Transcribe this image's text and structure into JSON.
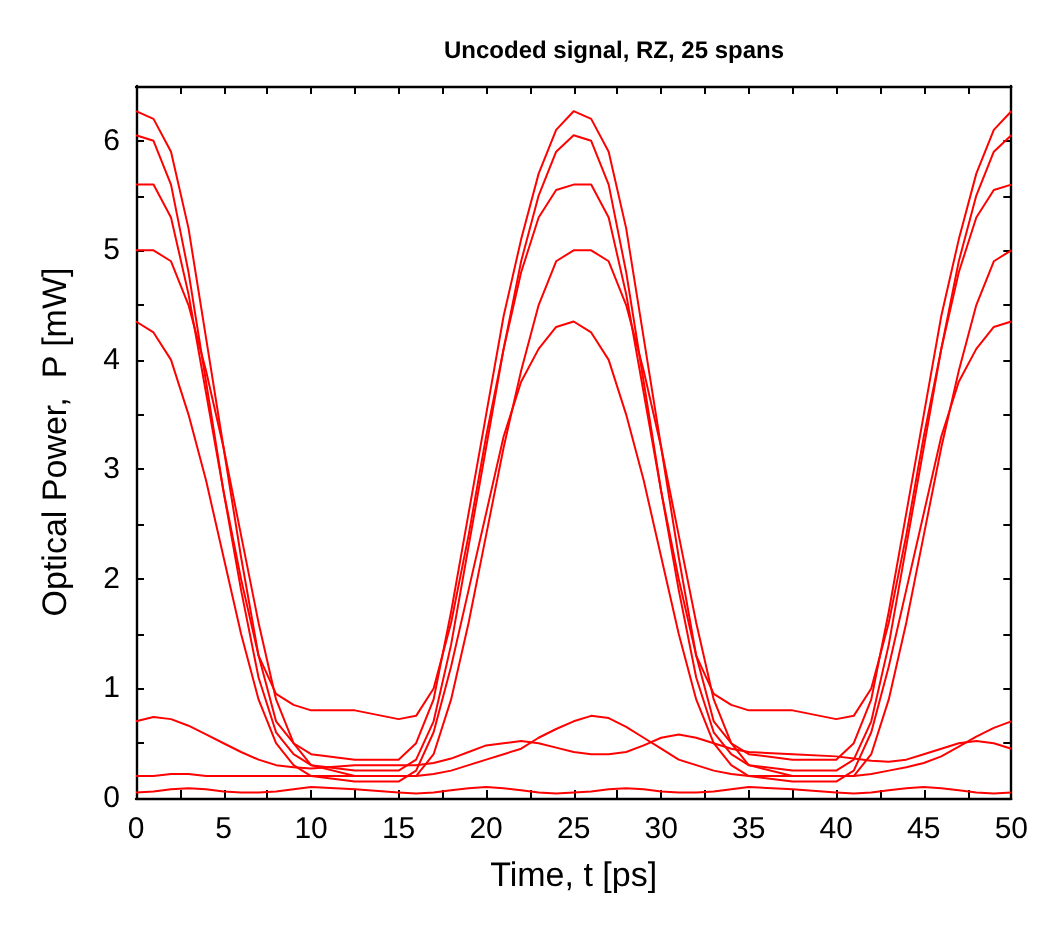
{
  "chart_data": {
    "type": "line",
    "title": "Uncoded signal, RZ, 25 spans",
    "xlabel": "Time, t [ps]",
    "ylabel": "Optical Power,  P [mW]",
    "marker": "none",
    "line_style": "solid",
    "xlim": [
      0,
      50
    ],
    "ylim": [
      0,
      6.5
    ],
    "xticks": [
      0,
      {
        "value": 2.5,
        "label": null
      },
      5,
      {
        "value": 7.5,
        "label": null
      },
      10,
      {
        "value": 12.5,
        "label": null
      },
      15,
      {
        "value": 17.5,
        "label": null
      },
      20,
      {
        "value": 22.5,
        "label": null
      },
      25,
      {
        "value": 27.5,
        "label": null
      },
      30,
      {
        "value": 32.5,
        "label": null
      },
      35,
      {
        "value": 37.5,
        "label": null
      },
      40,
      {
        "value": 42.5,
        "label": null
      },
      45,
      {
        "value": 47.5,
        "label": null
      },
      50
    ],
    "yticks": [
      0,
      {
        "value": 0.5,
        "label": null
      },
      1,
      {
        "value": 1.5,
        "label": null
      },
      2,
      {
        "value": 2.5,
        "label": null
      },
      3,
      {
        "value": 3.5,
        "label": null
      },
      4,
      {
        "value": 4.5,
        "label": null
      },
      5,
      {
        "value": 5.5,
        "label": null
      },
      6
    ],
    "x": [
      0,
      1,
      2,
      3,
      4,
      5,
      6,
      7,
      8,
      9,
      10,
      12.5,
      15,
      16,
      17,
      18,
      19,
      20,
      21,
      22,
      23,
      24,
      25,
      26,
      27,
      28,
      29,
      30,
      31,
      32,
      33,
      34,
      35,
      37.5,
      40,
      41,
      42,
      43,
      44,
      45,
      46,
      47,
      48,
      49,
      50
    ],
    "series": [
      {
        "color": "#ff0000",
        "values": [
          6.27,
          6.2,
          5.9,
          5.2,
          4.2,
          3.2,
          2.2,
          1.3,
          0.7,
          0.5,
          0.4,
          0.35,
          0.35,
          0.5,
          0.9,
          1.7,
          2.6,
          3.5,
          4.4,
          5.1,
          5.7,
          6.1,
          6.27,
          6.2,
          5.9,
          5.2,
          4.2,
          3.2,
          2.2,
          1.3,
          0.7,
          0.5,
          0.4,
          0.35,
          0.35,
          0.5,
          0.9,
          1.7,
          2.6,
          3.5,
          4.4,
          5.1,
          5.7,
          6.1,
          6.27
        ]
      },
      {
        "color": "#ff0000",
        "values": [
          6.05,
          6.0,
          5.6,
          4.8,
          3.8,
          2.8,
          1.9,
          1.1,
          0.6,
          0.4,
          0.3,
          0.25,
          0.25,
          0.35,
          0.7,
          1.4,
          2.3,
          3.2,
          4.1,
          4.9,
          5.5,
          5.9,
          6.05,
          6.0,
          5.6,
          4.8,
          3.8,
          2.8,
          1.9,
          1.1,
          0.6,
          0.4,
          0.3,
          0.25,
          0.25,
          0.35,
          0.7,
          1.4,
          2.3,
          3.2,
          4.1,
          4.9,
          5.5,
          5.9,
          6.05
        ]
      },
      {
        "color": "#ff0000",
        "values": [
          5.0,
          5.0,
          4.9,
          4.5,
          3.9,
          3.2,
          2.4,
          1.6,
          0.9,
          0.5,
          0.3,
          0.2,
          0.2,
          0.2,
          0.4,
          0.9,
          1.6,
          2.4,
          3.2,
          3.9,
          4.5,
          4.9,
          5.0,
          5.0,
          4.9,
          4.5,
          3.9,
          3.2,
          2.4,
          1.6,
          0.9,
          0.5,
          0.3,
          0.2,
          0.2,
          0.2,
          0.4,
          0.9,
          1.6,
          2.4,
          3.2,
          3.9,
          4.5,
          4.9,
          5.0
        ]
      },
      {
        "color": "#ff0000",
        "values": [
          4.35,
          4.25,
          4.0,
          3.5,
          2.9,
          2.2,
          1.5,
          0.9,
          0.5,
          0.3,
          0.2,
          0.15,
          0.15,
          0.25,
          0.6,
          1.2,
          1.9,
          2.6,
          3.3,
          3.8,
          4.1,
          4.3,
          4.35,
          4.25,
          4.0,
          3.5,
          2.9,
          2.2,
          1.5,
          0.9,
          0.5,
          0.3,
          0.2,
          0.15,
          0.15,
          0.25,
          0.6,
          1.2,
          1.9,
          2.6,
          3.3,
          3.8,
          4.1,
          4.3,
          4.35
        ]
      },
      {
        "color": "#ff0000",
        "values": [
          5.6,
          5.6,
          5.3,
          4.6,
          3.7,
          2.8,
          2.0,
          1.3,
          0.95,
          0.85,
          0.8,
          0.8,
          0.72,
          0.75,
          1.0,
          1.6,
          2.4,
          3.3,
          4.1,
          4.8,
          5.3,
          5.55,
          5.6,
          5.6,
          5.3,
          4.6,
          3.7,
          2.8,
          2.0,
          1.3,
          0.95,
          0.85,
          0.8,
          0.8,
          0.72,
          0.75,
          1.0,
          1.6,
          2.4,
          3.3,
          4.1,
          4.8,
          5.3,
          5.55,
          5.6
        ]
      },
      {
        "color": "#ff0000",
        "values": [
          0.2,
          0.2,
          0.22,
          0.22,
          0.2,
          0.2,
          0.2,
          0.2,
          0.2,
          0.2,
          0.2,
          0.2,
          0.2,
          0.2,
          0.22,
          0.25,
          0.3,
          0.35,
          0.4,
          0.45,
          0.55,
          0.63,
          0.7,
          0.75,
          0.73,
          0.65,
          0.55,
          0.45,
          0.35,
          0.3,
          0.25,
          0.22,
          0.2,
          0.2,
          0.2,
          0.2,
          0.22,
          0.25,
          0.28,
          0.32,
          0.38,
          0.47,
          0.56,
          0.64,
          0.7
        ]
      },
      {
        "color": "#ff0000",
        "values": [
          0.7,
          0.74,
          0.72,
          0.66,
          0.58,
          0.5,
          0.42,
          0.35,
          0.3,
          0.28,
          0.27,
          0.3,
          0.3,
          0.3,
          0.32,
          0.36,
          0.42,
          0.48,
          0.5,
          0.52,
          0.5,
          0.46,
          0.42,
          0.4,
          0.4,
          0.42,
          0.48,
          0.55,
          0.58,
          0.55,
          0.5,
          0.45,
          0.42,
          0.4,
          0.38,
          0.36,
          0.34,
          0.33,
          0.35,
          0.4,
          0.45,
          0.5,
          0.52,
          0.5,
          0.45
        ]
      },
      {
        "color": "#ff0000",
        "values": [
          0.05,
          0.06,
          0.08,
          0.09,
          0.08,
          0.06,
          0.05,
          0.05,
          0.06,
          0.08,
          0.1,
          0.08,
          0.05,
          0.04,
          0.05,
          0.07,
          0.09,
          0.1,
          0.09,
          0.07,
          0.05,
          0.04,
          0.05,
          0.06,
          0.08,
          0.09,
          0.08,
          0.06,
          0.05,
          0.05,
          0.06,
          0.08,
          0.1,
          0.08,
          0.05,
          0.04,
          0.05,
          0.07,
          0.09,
          0.1,
          0.09,
          0.07,
          0.05,
          0.04,
          0.05
        ]
      }
    ]
  }
}
